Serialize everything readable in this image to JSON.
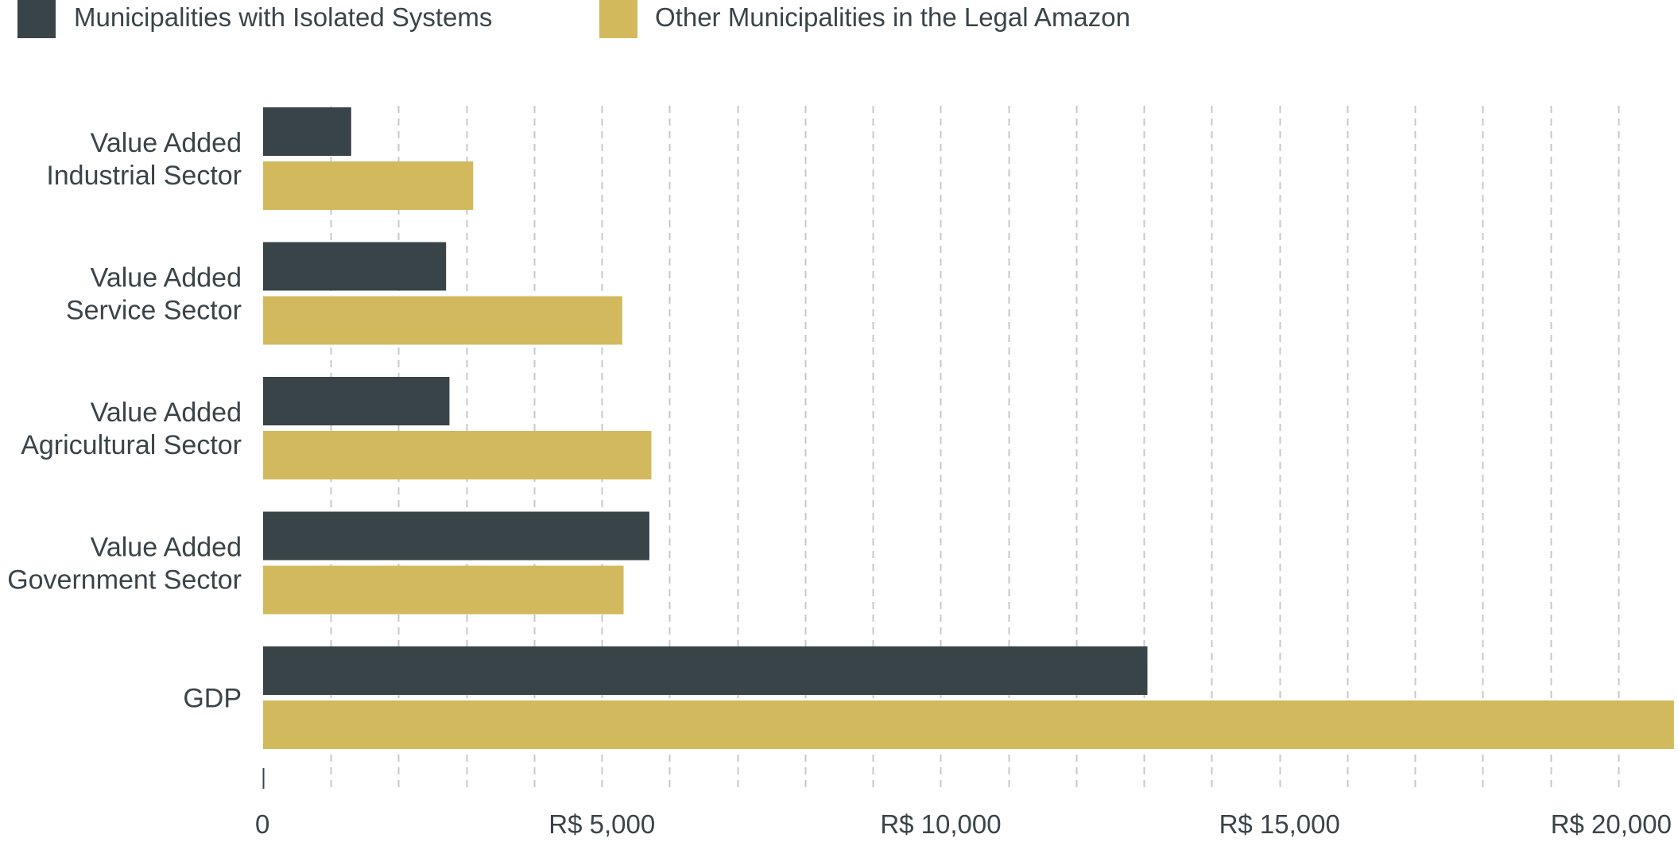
{
  "chart_data": {
    "type": "bar",
    "orientation": "horizontal",
    "title": "",
    "xlabel": "",
    "ylabel": "",
    "categories": [
      [
        "Value Added",
        "Industrial Sector"
      ],
      [
        "Value Added",
        "Service Sector"
      ],
      [
        "Value Added",
        "Agricultural Sector"
      ],
      [
        "Value Added",
        "Government Sector"
      ],
      [
        "GDP"
      ]
    ],
    "series": [
      {
        "name": "Municipalities with Isolated Systems",
        "color": "#394449",
        "values": [
          1300,
          2700,
          2750,
          5700,
          13050
        ]
      },
      {
        "name": "Other Municipalities in the Legal Amazon",
        "color": "#d2b95d",
        "values": [
          3100,
          5300,
          5730,
          5320,
          20820
        ]
      }
    ],
    "xlim": [
      0,
      20880
    ],
    "xticks": [
      {
        "value": 0,
        "label": "0"
      },
      {
        "value": 5000,
        "label": "R$ 5,000"
      },
      {
        "value": 10000,
        "label": "R$ 10,000"
      },
      {
        "value": 15000,
        "label": "R$ 15,000"
      },
      {
        "value": 20000,
        "label": "R$ 20,000"
      }
    ],
    "grid_step": 1000,
    "grid": true,
    "legend_position": "top-left"
  }
}
